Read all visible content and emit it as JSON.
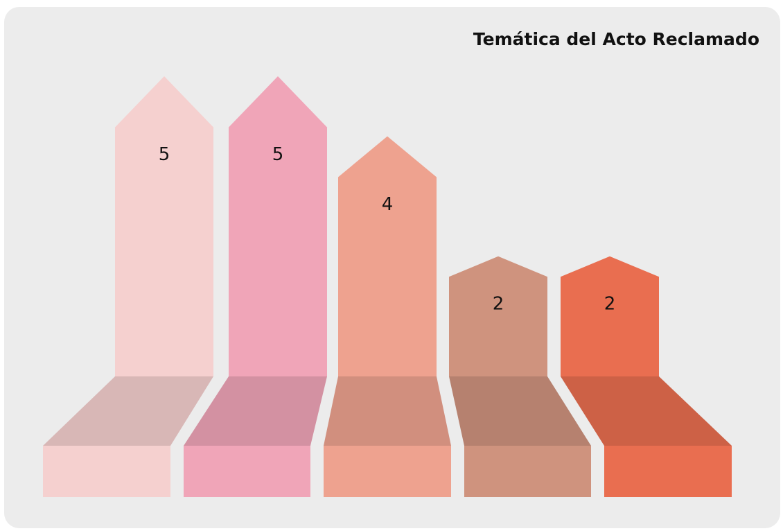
{
  "chart_data": {
    "type": "arrow-bar",
    "title": "Temática del Acto Reclamado",
    "values": [
      5,
      5,
      4,
      2,
      2
    ],
    "colors": [
      "#f5d0cf",
      "#f0a5b8",
      "#eea28f",
      "#cf937e",
      "#e96e50"
    ]
  }
}
